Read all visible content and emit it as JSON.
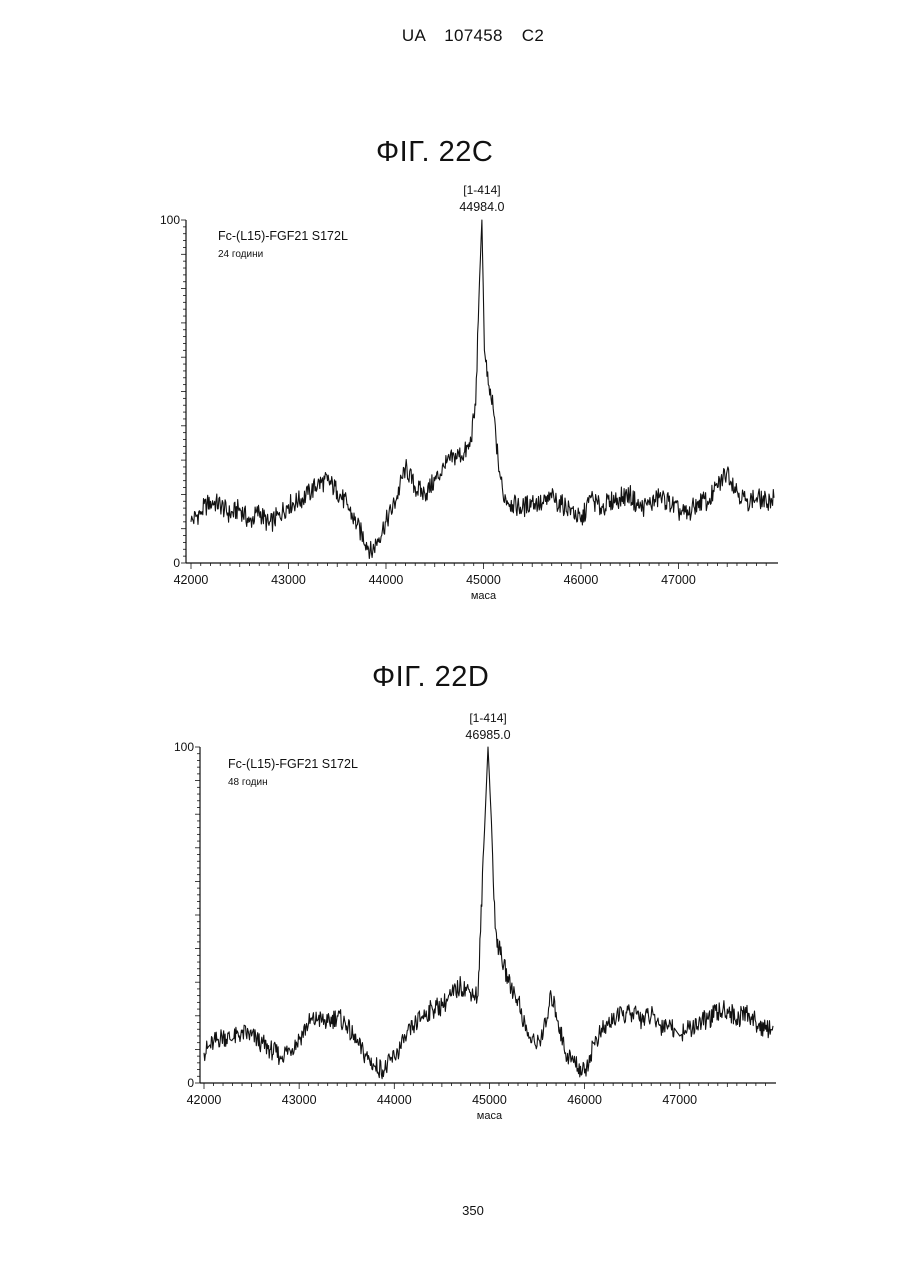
{
  "header": {
    "text": "UA 107458 C2"
  },
  "page_number": "350",
  "chart_data": [
    {
      "figure": "ΦΙΓ. 22C",
      "type": "line",
      "sample": "Fc-(L15)-FGF21 S172L",
      "timepoint": "24 години",
      "peak_label": "[1-414]",
      "peak_mass": "44984.0",
      "xlabel": "маса",
      "ylabel": "",
      "xlim": [
        42000,
        47980
      ],
      "ylim": [
        0,
        100
      ],
      "x_ticks": [
        "42000",
        "43000",
        "44000",
        "45000",
        "46000",
        "47000"
      ],
      "y_ticks": [
        "0",
        "100"
      ],
      "series": [
        {
          "x": [
            42000,
            42100,
            42200,
            42300,
            42400,
            42500,
            42600,
            42700,
            42800,
            42900,
            43000,
            43100,
            43200,
            43300,
            43400,
            43500,
            43600,
            43700,
            43800,
            43850,
            43900,
            44000,
            44100,
            44200,
            44300,
            44400,
            44500,
            44600,
            44700,
            44800,
            44860,
            44920,
            44960,
            44984,
            45010,
            45050,
            45100,
            45150,
            45200,
            45300,
            45400,
            45500,
            45600,
            45700,
            45800,
            45900,
            46000,
            46100,
            46200,
            46300,
            46400,
            46500,
            46600,
            46700,
            46800,
            46900,
            47000,
            47100,
            47200,
            47300,
            47400,
            47500,
            47600,
            47700,
            47800,
            47900,
            47980
          ],
          "y": [
            12,
            15,
            18,
            17,
            14,
            16,
            12,
            15,
            11,
            14,
            17,
            18,
            20,
            23,
            24,
            21,
            17,
            11,
            6,
            3,
            6,
            12,
            18,
            28,
            22,
            20,
            24,
            28,
            31,
            32,
            34,
            46,
            83,
            100,
            62,
            52,
            45,
            30,
            20,
            17,
            16,
            18,
            17,
            19,
            17,
            16,
            12,
            19,
            16,
            18,
            19,
            20,
            16,
            17,
            19,
            18,
            15,
            14,
            18,
            18,
            22,
            27,
            21,
            18,
            19,
            18,
            19
          ]
        }
      ]
    },
    {
      "figure": "ΦΙΓ. 22D",
      "type": "line",
      "sample": "Fc-(L15)-FGF21 S172L",
      "timepoint": "48 годин",
      "peak_label": "[1-414]",
      "peak_mass": "46985.0",
      "xlabel": "маса",
      "ylabel": "",
      "xlim": [
        42000,
        47980
      ],
      "ylim": [
        0,
        100
      ],
      "x_ticks": [
        "42000",
        "43000",
        "44000",
        "45000",
        "46000",
        "47000"
      ],
      "y_ticks": [
        "0",
        "100"
      ],
      "series": [
        {
          "x": [
            42000,
            42100,
            42200,
            42300,
            42400,
            42500,
            42600,
            42700,
            42800,
            42900,
            43000,
            43100,
            43200,
            43300,
            43400,
            43500,
            43600,
            43700,
            43800,
            43900,
            44000,
            44100,
            44200,
            44300,
            44400,
            44500,
            44600,
            44700,
            44800,
            44880,
            44940,
            44985,
            45020,
            45060,
            45100,
            45150,
            45200,
            45300,
            45400,
            45500,
            45600,
            45650,
            45700,
            45800,
            45900,
            46000,
            46100,
            46200,
            46300,
            46400,
            46500,
            46600,
            46700,
            46800,
            46900,
            47000,
            47100,
            47200,
            47300,
            47400,
            47500,
            47600,
            47700,
            47800,
            47900,
            47980
          ],
          "y": [
            9,
            12,
            14,
            13,
            15,
            14,
            12,
            10,
            8,
            10,
            13,
            18,
            19,
            18,
            20,
            17,
            12,
            8,
            5,
            4,
            8,
            12,
            17,
            20,
            22,
            23,
            26,
            29,
            27,
            26,
            70,
            100,
            78,
            46,
            40,
            35,
            30,
            25,
            14,
            11,
            18,
            26,
            21,
            9,
            6,
            3,
            12,
            16,
            19,
            20,
            21,
            19,
            20,
            17,
            18,
            14,
            16,
            18,
            19,
            21,
            22,
            19,
            21,
            18,
            16,
            17
          ]
        }
      ]
    }
  ]
}
